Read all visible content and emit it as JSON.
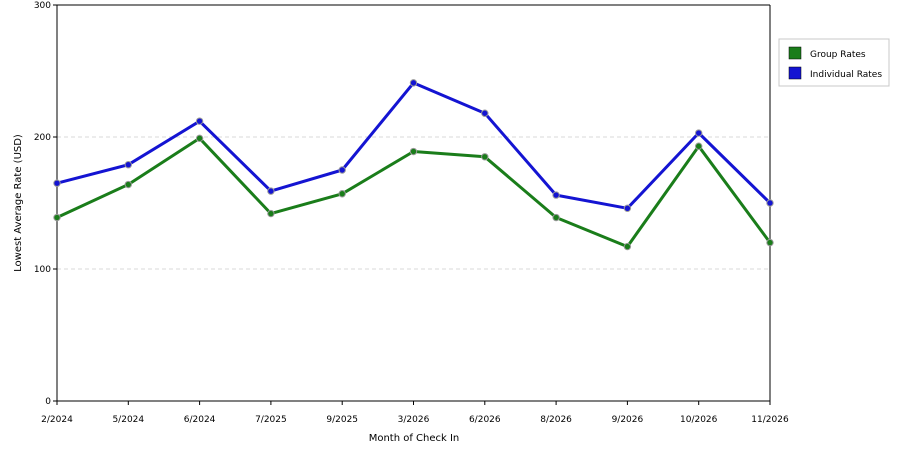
{
  "chart_data": {
    "type": "line",
    "title": "",
    "xlabel": "Month of Check In",
    "ylabel": "Lowest Average Rate (USD)",
    "categories": [
      "2/2024",
      "5/2024",
      "6/2024",
      "7/2025",
      "9/2025",
      "3/2026",
      "6/2026",
      "8/2026",
      "9/2026",
      "10/2026",
      "11/2026"
    ],
    "ylim": [
      0,
      300
    ],
    "yticks": [
      0,
      100,
      200,
      300
    ],
    "grid": true,
    "legend_position": "right",
    "series": [
      {
        "name": "Group Rates",
        "color": "#1a7d1a",
        "values": [
          139,
          164,
          199,
          142,
          157,
          189,
          185,
          139,
          117,
          193,
          120
        ]
      },
      {
        "name": "Individual Rates",
        "color": "#1414d2",
        "values": [
          165,
          179,
          212,
          159,
          175,
          241,
          218,
          156,
          146,
          203,
          150
        ]
      }
    ]
  }
}
